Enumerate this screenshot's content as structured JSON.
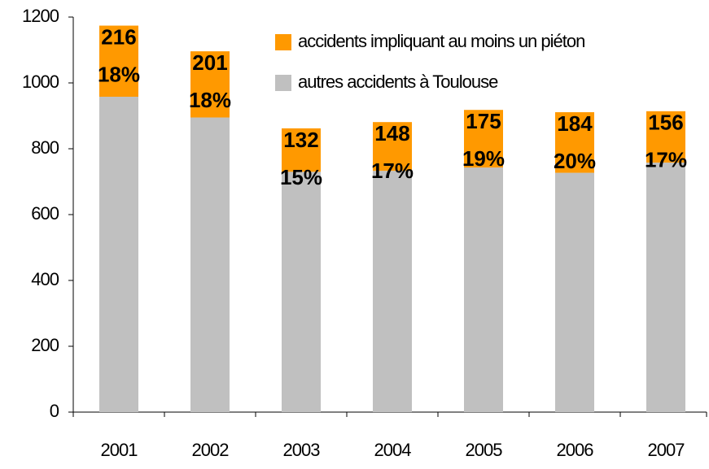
{
  "chart_data": {
    "type": "stacked_bar",
    "categories": [
      "2001",
      "2002",
      "2003",
      "2004",
      "2005",
      "2006",
      "2007"
    ],
    "series": [
      {
        "name": "autres accidents à Toulouse",
        "color": "#c0c0c0",
        "values": [
          958,
          895,
          730,
          733,
          743,
          727,
          758
        ]
      },
      {
        "name": "accidents impliquant au moins un piéton",
        "color": "#ff9900",
        "values": [
          216,
          201,
          132,
          148,
          175,
          184,
          156
        ]
      }
    ],
    "annotations": [
      "18%",
      "18%",
      "15%",
      "17%",
      "19%",
      "20%",
      "17%"
    ],
    "ylim": [
      0,
      1200
    ],
    "yticks": [
      0,
      200,
      400,
      600,
      800,
      1000,
      1200
    ],
    "grid": false
  }
}
